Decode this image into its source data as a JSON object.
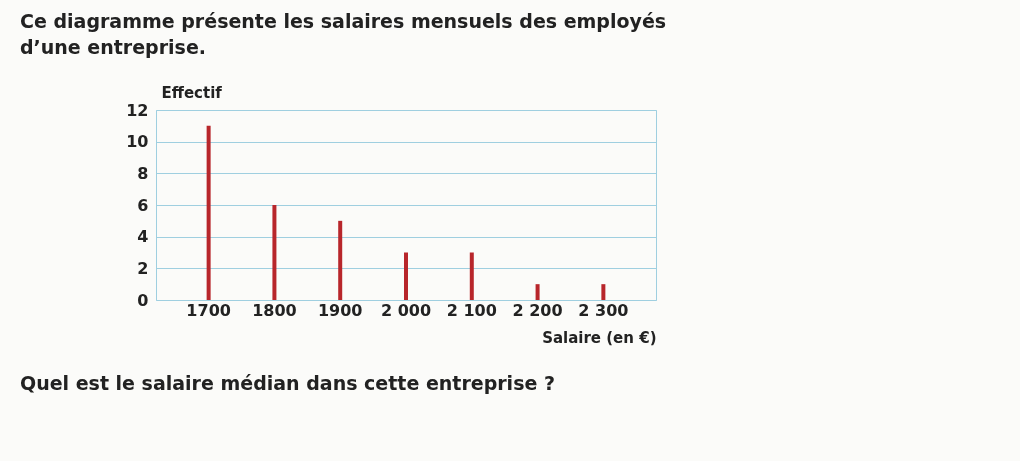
{
  "chart_data": {
    "type": "bar",
    "title": "Ce diagramme présente les salaires mensuels des employés d’une entreprise.",
    "categories": [
      "1700",
      "1800",
      "1900",
      "2 000",
      "2 100",
      "2 200",
      "2 300"
    ],
    "values": [
      11,
      6,
      5,
      3,
      3,
      1,
      1
    ],
    "color": "#b8262b",
    "xlabel": "Salaire (en €)",
    "ylabel": "Effectif",
    "ylim": [
      0,
      12
    ],
    "yticks": [
      0,
      2,
      4,
      6,
      8,
      10,
      12
    ],
    "grid": "y",
    "annotations": [
      "Quel est le salaire médian dans cette entreprise ?"
    ]
  }
}
